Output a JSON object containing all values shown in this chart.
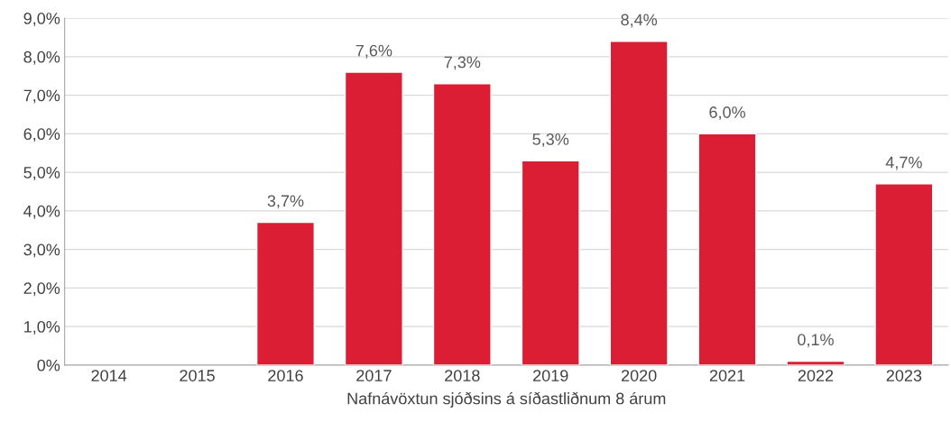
{
  "chart_data": {
    "type": "bar",
    "xlabel": "Nafnávöxtun sjóðsins á síðastliðnum 8 árum",
    "categories": [
      "2014",
      "2015",
      "2016",
      "2017",
      "2018",
      "2019",
      "2020",
      "2021",
      "2022",
      "2023"
    ],
    "values": [
      null,
      null,
      3.7,
      7.6,
      7.3,
      5.3,
      8.4,
      6.0,
      0.1,
      4.7
    ],
    "value_labels": [
      null,
      null,
      "3,7%",
      "7,6%",
      "7,3%",
      "5,3%",
      "8,4%",
      "6,0%",
      "0,1%",
      "4,7%"
    ],
    "color": "#dc1e35",
    "ylim": [
      0,
      9
    ],
    "yticks": [
      {
        "value": 0,
        "label": "0%"
      },
      {
        "value": 1,
        "label": "1,0%"
      },
      {
        "value": 2,
        "label": "2,0%"
      },
      {
        "value": 3,
        "label": "3,0%"
      },
      {
        "value": 4,
        "label": "4,0%"
      },
      {
        "value": 5,
        "label": "5,0%"
      },
      {
        "value": 6,
        "label": "6,0%"
      },
      {
        "value": 7,
        "label": "7,0%"
      },
      {
        "value": 8,
        "label": "8,0%"
      },
      {
        "value": 9,
        "label": "9,0%"
      }
    ],
    "grid": "y",
    "legend": false
  }
}
